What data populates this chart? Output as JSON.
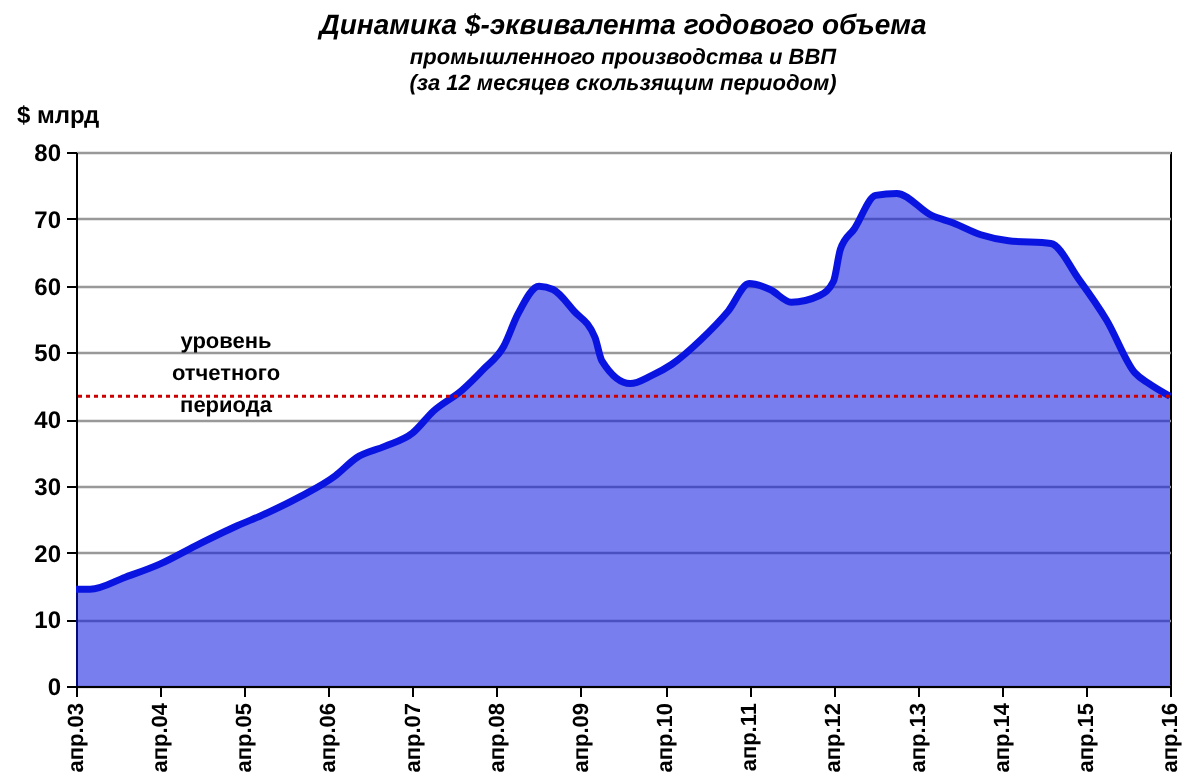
{
  "chart_data": {
    "type": "area",
    "title": "Динамика $-эквивалента годового объема",
    "subtitle": "промышленного  производства  и ВВП\n(за 12 месяцев скользящим периодом)",
    "ylabel": "$ млрд",
    "x": [
      "2003-04",
      "2003-06",
      "2003-11",
      "2004-04",
      "2004-09",
      "2005-03",
      "2005-07",
      "2005-12",
      "2006-05",
      "2006-08",
      "2006-12",
      "2007-04",
      "2007-07",
      "2007-11",
      "2008-02",
      "2008-05",
      "2008-07",
      "2008-10",
      "2008-12",
      "2009-03",
      "2009-06",
      "2009-07",
      "2009-11",
      "2010-02",
      "2010-05",
      "2010-09",
      "2011-01",
      "2011-04",
      "2011-07",
      "2011-10",
      "2012-02",
      "2012-04",
      "2012-05",
      "2012-07",
      "2012-10",
      "2013-01",
      "2013-06",
      "2013-09",
      "2014-01",
      "2014-05",
      "2014-11",
      "2015-03",
      "2015-07",
      "2015-11",
      "2016-01",
      "2016-04"
    ],
    "series": [
      {
        "color": "#0a14e0",
        "values": [
          14.5,
          14.5,
          16.3,
          18.3,
          21,
          24,
          25.8,
          28.4,
          31.5,
          34.2,
          35.9,
          37.9,
          41.2,
          44.3,
          47.4,
          50.9,
          55.7,
          59.9,
          59.4,
          56.2,
          52.2,
          48.7,
          45.3,
          46.5,
          48.2,
          51.8,
          56.2,
          60.3,
          59.4,
          57.5,
          58.5,
          60.6,
          65.4,
          68.5,
          73.5,
          73.8,
          70.5,
          69.4,
          67.6,
          66.7,
          66.3,
          61,
          54.8,
          46.9,
          45.3,
          43.4
        ]
      }
    ],
    "xlim": [
      "2003-04",
      "2016-04"
    ],
    "xticks": [
      {
        "value": "2003-04",
        "label": "апр.03"
      },
      {
        "value": "2004-04",
        "label": "апр.04"
      },
      {
        "value": "2005-04",
        "label": "апр.05"
      },
      {
        "value": "2006-04",
        "label": "апр.06"
      },
      {
        "value": "2007-04",
        "label": "апр.07"
      },
      {
        "value": "2008-04",
        "label": "апр.08"
      },
      {
        "value": "2009-04",
        "label": "апр.09"
      },
      {
        "value": "2010-04",
        "label": "апр.10"
      },
      {
        "value": "2011-04",
        "label": "апр.11"
      },
      {
        "value": "2012-04",
        "label": "апр.12"
      },
      {
        "value": "2013-04",
        "label": "апр.13"
      },
      {
        "value": "2014-04",
        "label": "апр.14"
      },
      {
        "value": "2015-04",
        "label": "апр.15"
      },
      {
        "value": "2016-04",
        "label": "апр.16"
      }
    ],
    "ylim": [
      0,
      80
    ],
    "yticks": [
      0,
      10,
      20,
      30,
      40,
      50,
      60,
      70,
      80
    ],
    "grid": "y",
    "legend": false,
    "marker": "none",
    "line_style": "solid",
    "ref_lines": [
      {
        "axis": "y",
        "value": 43.4,
        "label": "уровень отчетного периода",
        "color": "#cc0000",
        "line_style": "dotted"
      }
    ]
  }
}
